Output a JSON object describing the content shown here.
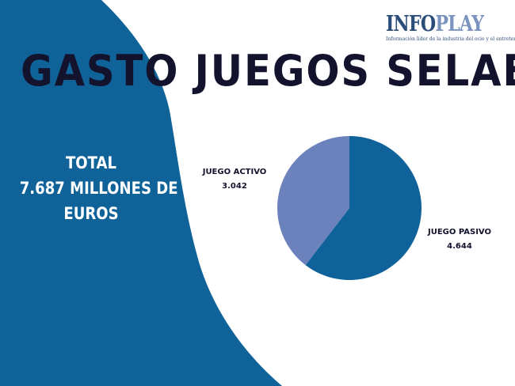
{
  "header": {
    "title": "GASTO JUEGOS SELAE"
  },
  "logo": {
    "word_part1": "INFO",
    "word_part2": "PLAY",
    "tagline": "Información líder de la industria del ocio y el entretenimiento"
  },
  "summary": {
    "line1": "TOTAL",
    "line2": "7.687 MILLONES DE",
    "line3": "EUROS"
  },
  "colors": {
    "background_shape": "#0f6399",
    "title": "#13132e",
    "slice_pasivo": "#10639a",
    "slice_activo": "#6b82bd"
  },
  "chart_data": {
    "type": "pie",
    "title": "",
    "categories": [
      "JUEGO PASIVO",
      "JUEGO ACTIVO"
    ],
    "values": [
      4644,
      3042
    ],
    "value_labels": [
      "4.644",
      "3.042"
    ],
    "colors": [
      "#10639a",
      "#6b82bd"
    ],
    "start_angle_deg": 0,
    "direction": "clockwise",
    "legend": "none"
  }
}
